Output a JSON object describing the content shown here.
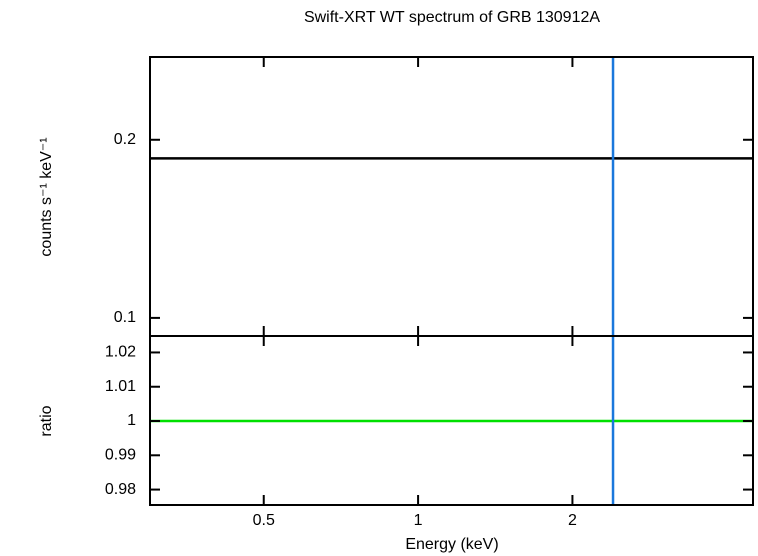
{
  "chart_data": [
    {
      "type": "line",
      "title": "Swift-XRT WT spectrum of GRB 130912A",
      "ylabel": "counts s⁻¹ keV⁻¹",
      "xlog": true,
      "ylog": true,
      "xlim": [
        0.3,
        4.5
      ],
      "xticks": [
        0.5,
        1,
        2
      ],
      "ylim": [
        0.0932,
        0.276
      ],
      "yticks": [
        0.1,
        0.2
      ],
      "series": [
        {
          "color": "#000000",
          "x": [
            0.3,
            4.5
          ],
          "values": [
            0.186,
            0.186
          ]
        }
      ],
      "vlines": [
        {
          "x": 2.4,
          "color": "#1a78dc"
        }
      ]
    },
    {
      "type": "line",
      "xlabel": "Energy (keV)",
      "ylabel": "ratio",
      "xlog": true,
      "ylog": false,
      "xlim": [
        0.3,
        4.5
      ],
      "xticks": [
        0.5,
        1,
        2
      ],
      "ylim": [
        0.9755,
        1.0248
      ],
      "yticks": [
        0.98,
        0.99,
        1,
        1.01,
        1.02
      ],
      "series": [
        {
          "color": "#00e000",
          "x": [
            0.3,
            4.5
          ],
          "values": [
            1,
            1
          ]
        }
      ],
      "vlines": [
        {
          "x": 2.4,
          "color": "#1a78dc"
        }
      ]
    }
  ]
}
